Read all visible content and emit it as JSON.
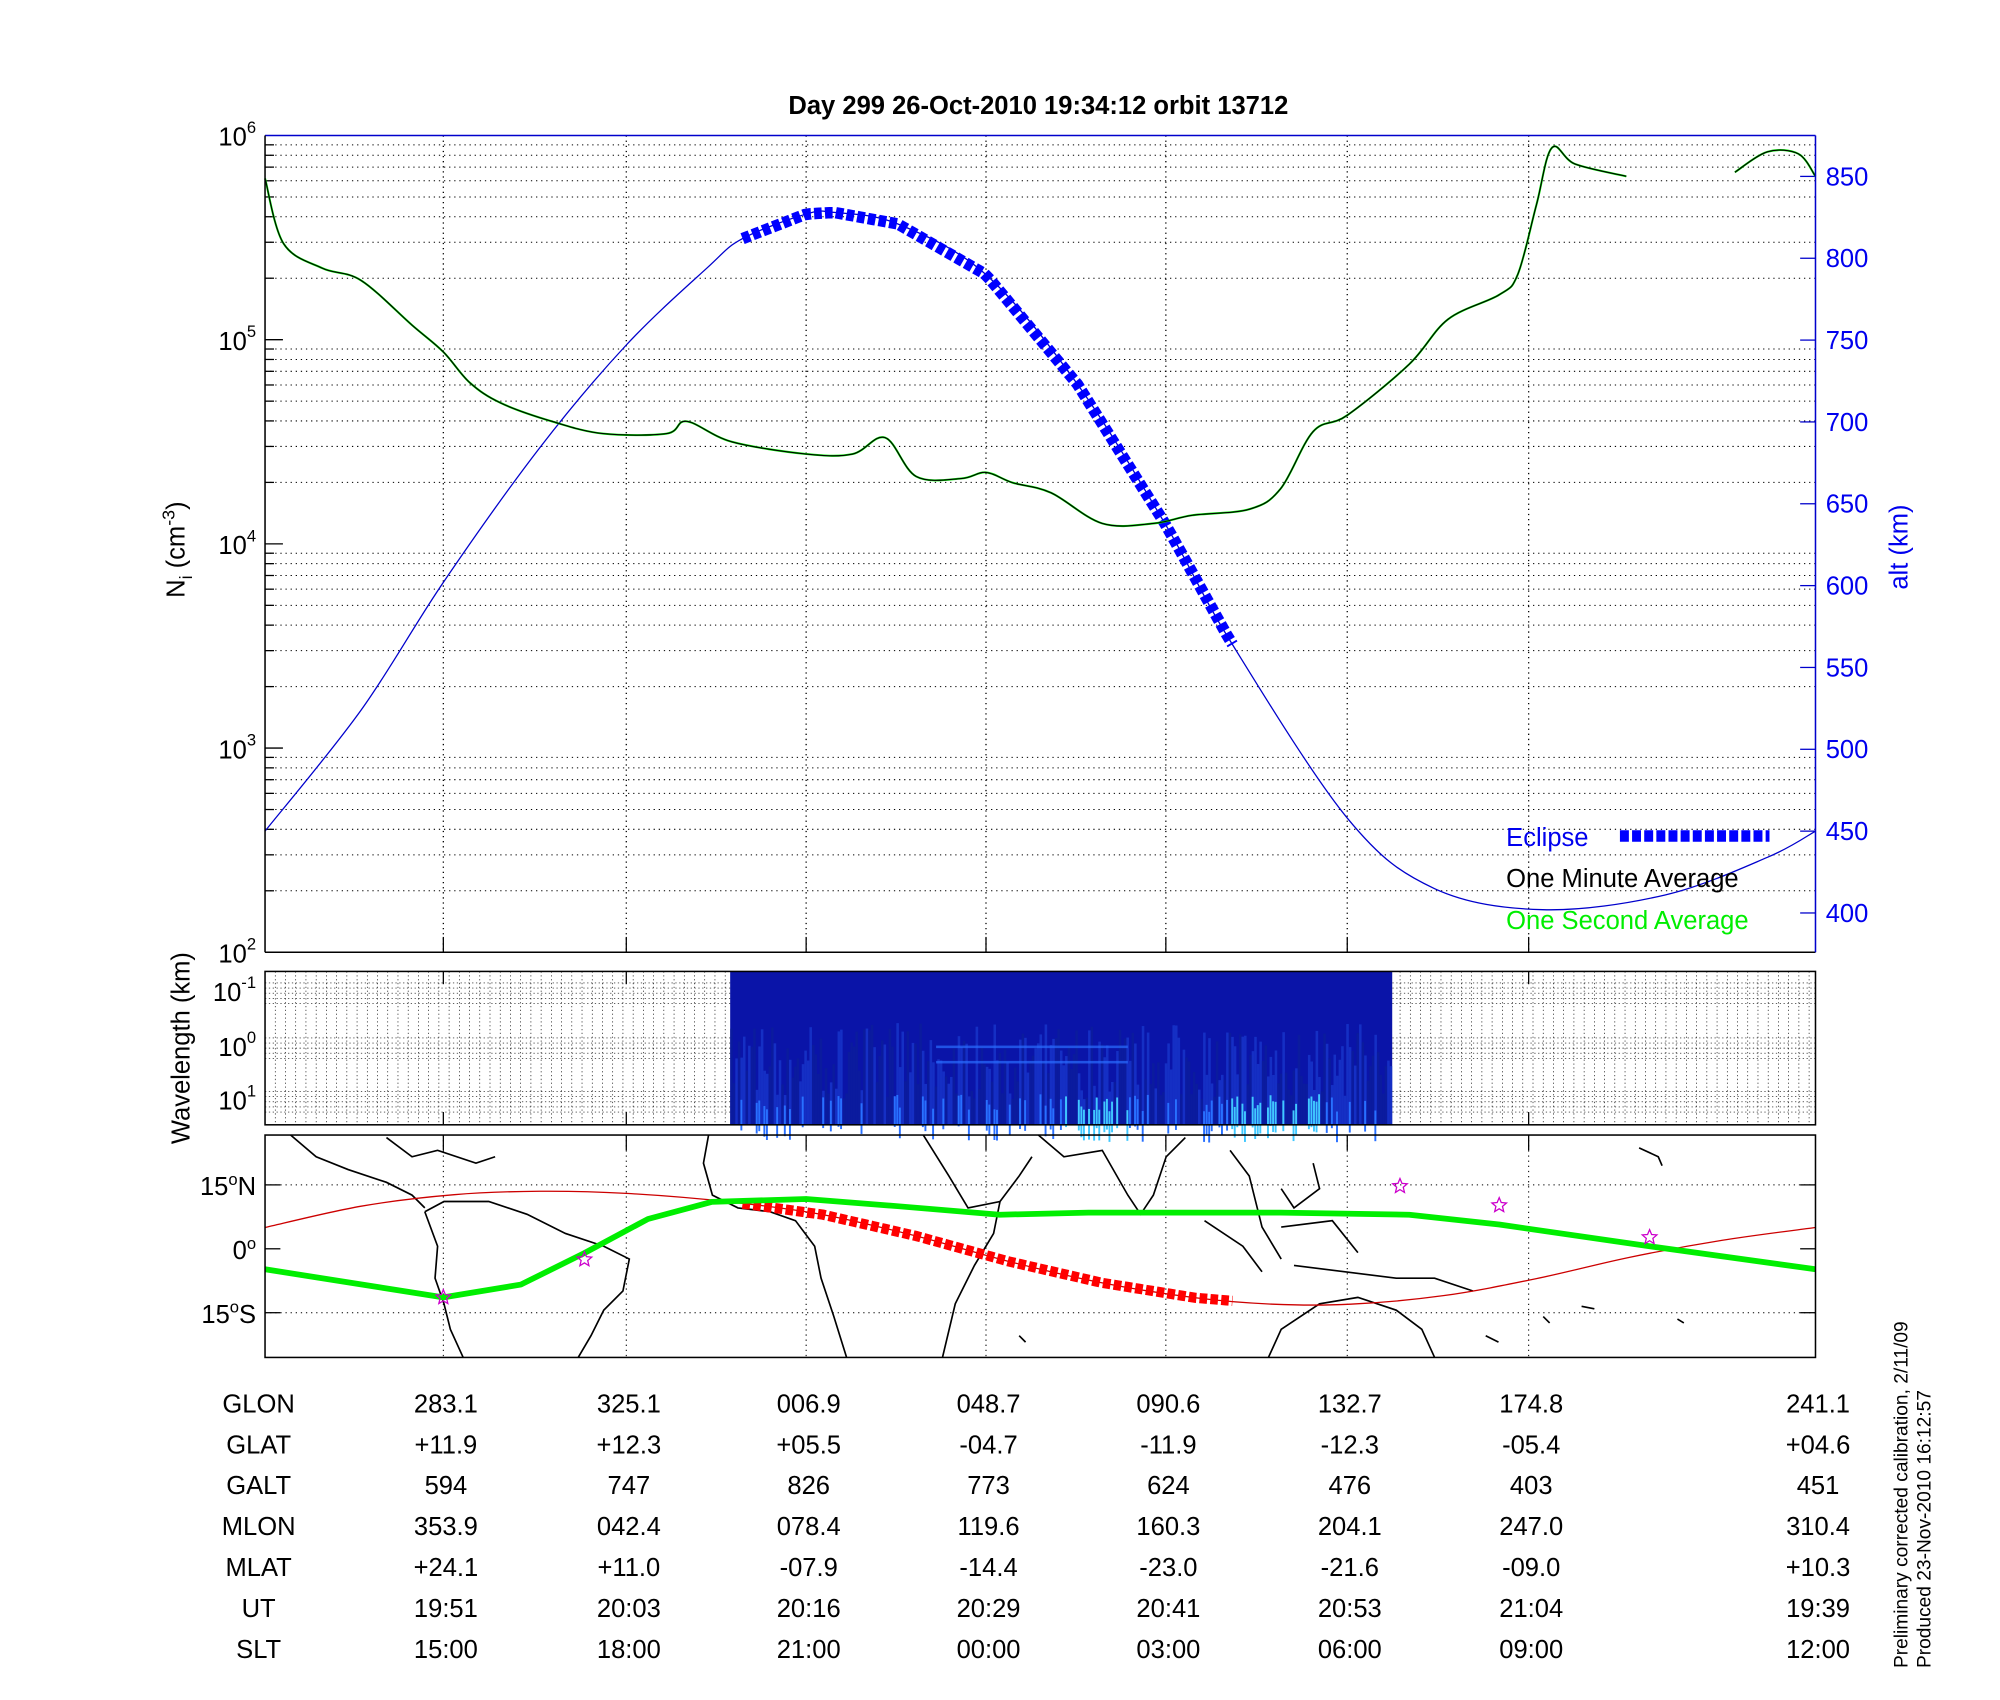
{
  "title": "Day 299  26-Oct-2010 19:34:12   orbit 13712",
  "colors": {
    "alt": "#0000cc",
    "eclipse": "#0000ff",
    "minute": "#000000",
    "second": "#00ee00",
    "track": "#cc0000",
    "track_eclipse": "#ff0000",
    "equator": "#00ee00",
    "star": "#cc00cc"
  },
  "side_notes": [
    "Preliminary corrected calibration, 2/11/09",
    "Produced 23-Nov-2010 16:12:57"
  ],
  "chart_data": [
    {
      "type": "line",
      "title": "Day 299  26-Oct-2010 19:34:12   orbit 13712",
      "xlabel": "",
      "ylabel": "N_i (cm^-3)",
      "ylabel_main": "N",
      "ylabel_sub": "i",
      "ylabel_unit": " (cm",
      "ylabel_exp": "-3",
      "ylabel_close": ")",
      "y_scale": "log",
      "ylim_log10": [
        2,
        6
      ],
      "y_ticks": [
        {
          "base": "10",
          "exp": "2",
          "v": 2
        },
        {
          "base": "10",
          "exp": "3",
          "v": 3
        },
        {
          "base": "10",
          "exp": "4",
          "v": 4
        },
        {
          "base": "10",
          "exp": "5",
          "v": 5
        },
        {
          "base": "10",
          "exp": "6",
          "v": 6
        }
      ],
      "y2label": "alt (km)",
      "y2lim": [
        376,
        875
      ],
      "y2_ticks": [
        "400",
        "450",
        "500",
        "550",
        "600",
        "650",
        "700",
        "750",
        "800",
        "850"
      ],
      "xlim": [
        0,
        1000
      ],
      "x_gridlines": [
        115,
        233,
        349,
        465,
        581,
        698,
        815
      ],
      "grid": true,
      "legend": {
        "placement": "bottom-right",
        "entries": [
          {
            "label": "Eclipse",
            "color": "#0000ff"
          },
          {
            "label": "One Minute Average",
            "color": "#000000"
          },
          {
            "label": "One Second Average",
            "color": "#00ee00"
          }
        ]
      },
      "series": [
        {
          "name": "alt (km)",
          "x": [
            0,
            62,
            115,
            177,
            233,
            285,
            308,
            349,
            367,
            408,
            465,
            524,
            581,
            622,
            698,
            754,
            824,
            903,
            969,
            1000
          ],
          "y": [
            450,
            524,
            602,
            684,
            747,
            794,
            812,
            827,
            828,
            821,
            790,
            723,
            637,
            567,
            458,
            415,
            402,
            411,
            434,
            450
          ]
        },
        {
          "name": "Eclipse",
          "x_range": [
            308,
            624
          ]
        },
        {
          "name": "One Minute Average (log10 Ni)",
          "segments": [
            {
              "x": [
                0,
                12,
                37,
                62,
                95,
                115,
                132,
                152,
                185,
                218,
                259,
                272,
                301,
                349,
                379,
                400,
                420,
                449,
                465,
                482,
                507,
                540,
                573,
                598,
                635,
                655,
                676,
                698,
                738,
                763,
                796,
                808,
                820,
                830,
                845,
                878
              ],
              "y": [
                5.79,
                5.47,
                5.35,
                5.29,
                5.07,
                4.94,
                4.79,
                4.69,
                4.6,
                4.54,
                4.54,
                4.6,
                4.5,
                4.44,
                4.44,
                4.52,
                4.33,
                4.32,
                4.35,
                4.3,
                4.25,
                4.1,
                4.1,
                4.14,
                4.17,
                4.27,
                4.55,
                4.63,
                4.88,
                5.1,
                5.22,
                5.32,
                5.66,
                5.94,
                5.86,
                5.8
              ]
            },
            {
              "x": [
                948,
                969,
                989,
                1000
              ],
              "y": [
                5.82,
                5.92,
                5.91,
                5.8
              ]
            }
          ]
        }
      ]
    },
    {
      "type": "heatmap",
      "ylabel": "Wavelength (km)",
      "y_ticks": [
        {
          "base": "10",
          "exp": "-1"
        },
        {
          "base": "10",
          "exp": "0"
        },
        {
          "base": "10",
          "exp": "1"
        }
      ],
      "data_x_range": [
        300,
        727
      ]
    },
    {
      "type": "line",
      "ylim": [
        -26,
        26
      ],
      "y_ticks": [
        {
          "deg": "15",
          "sym": "o",
          "hemi": "N",
          "v": 15
        },
        {
          "deg": "0",
          "sym": "o",
          "hemi": "",
          "v": 0
        },
        {
          "deg": "15",
          "sym": "o",
          "hemi": "S",
          "v": -15
        }
      ],
      "series": [
        {
          "name": "ground track",
          "x": [
            0,
            62,
            122,
            177,
            233,
            300,
            360,
            420,
            480,
            540,
            600,
            650,
            700,
            760,
            820,
            880,
            940,
            1000
          ],
          "y": [
            5,
            10,
            12.7,
            13.5,
            13,
            11,
            8,
            3,
            -3,
            -8,
            -11.5,
            -13,
            -13,
            -11,
            -7,
            -2,
            2,
            5
          ]
        },
        {
          "name": "ground track eclipse",
          "x_range": [
            308,
            624
          ]
        },
        {
          "name": "magnetic equator",
          "x": [
            0,
            115,
            165,
            206,
            247,
            288,
            349,
            408,
            474,
            531,
            581,
            655,
            738,
            796,
            893,
            1000
          ],
          "y": [
            -4.8,
            -11.4,
            -8.4,
            -1,
            7,
            11,
            11.7,
            10,
            8,
            8.5,
            8.5,
            8.5,
            8,
            5.7,
            0.6,
            -4.8
          ]
        },
        {
          "name": "stars",
          "x": [
            115,
            206,
            732,
            796,
            893
          ],
          "y": [
            -11.4,
            -2.5,
            14.7,
            10.2,
            2.7
          ]
        }
      ]
    }
  ],
  "table": {
    "columns_x": [
      115,
      233,
      349,
      465,
      581,
      698,
      815,
      1000
    ],
    "rows": [
      {
        "label": "GLON",
        "values": [
          "283.1",
          "325.1",
          "006.9",
          "048.7",
          "090.6",
          "132.7",
          "174.8",
          "241.1"
        ]
      },
      {
        "label": "GLAT",
        "values": [
          "+11.9",
          "+12.3",
          "+05.5",
          "-04.7",
          "-11.9",
          "-12.3",
          "-05.4",
          "+04.6"
        ]
      },
      {
        "label": "GALT",
        "values": [
          "594",
          "747",
          "826",
          "773",
          "624",
          "476",
          "403",
          "451"
        ]
      },
      {
        "label": "MLON",
        "values": [
          "353.9",
          "042.4",
          "078.4",
          "119.6",
          "160.3",
          "204.1",
          "247.0",
          "310.4"
        ]
      },
      {
        "label": "MLAT",
        "values": [
          "+24.1",
          "+11.0",
          "-07.9",
          "-14.4",
          "-23.0",
          "-21.6",
          "-09.0",
          "+10.3"
        ]
      },
      {
        "label": "UT",
        "values": [
          "19:51",
          "20:03",
          "20:16",
          "20:29",
          "20:41",
          "20:53",
          "21:04",
          "19:39"
        ]
      },
      {
        "label": "SLT",
        "values": [
          "15:00",
          "18:00",
          "21:00",
          "00:00",
          "03:00",
          "06:00",
          "09:00",
          "12:00"
        ]
      }
    ]
  }
}
